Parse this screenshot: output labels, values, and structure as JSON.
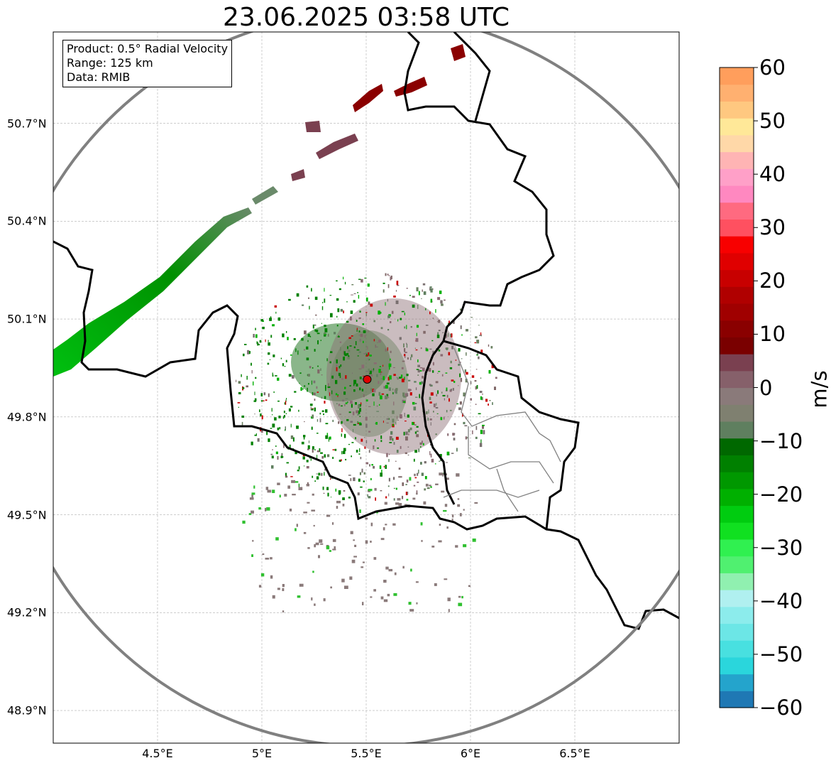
{
  "title": "23.06.2025 03:58 UTC",
  "info": {
    "product": "Product: 0.5° Radial Velocity",
    "range": "Range: 125 km",
    "data": "Data: RMIB"
  },
  "map": {
    "lon_range": [
      4.0,
      7.0
    ],
    "lat_range": [
      48.8,
      50.98
    ],
    "radar_site": {
      "lon": 5.505,
      "lat": 49.915
    },
    "range_ring_km": 125,
    "gridlines": true,
    "y_ticks": [
      {
        "value": 50.7,
        "label": "50.7°N"
      },
      {
        "value": 50.4,
        "label": "50.4°N"
      },
      {
        "value": 50.1,
        "label": "50.1°N"
      },
      {
        "value": 49.8,
        "label": "49.8°N"
      },
      {
        "value": 49.5,
        "label": "49.5°N"
      },
      {
        "value": 49.2,
        "label": "49.2°N"
      },
      {
        "value": 48.9,
        "label": "48.9°N"
      }
    ],
    "x_ticks": [
      {
        "value": 4.5,
        "label": "4.5°E"
      },
      {
        "value": 5.0,
        "label": "5°E"
      },
      {
        "value": 5.5,
        "label": "5.5°E"
      },
      {
        "value": 6.0,
        "label": "6°E"
      },
      {
        "value": 6.5,
        "label": "6.5°E"
      }
    ]
  },
  "colorbar": {
    "label": "m/s",
    "min": -60,
    "max": 60,
    "ticks": [
      {
        "value": 60,
        "label": "60"
      },
      {
        "value": 50,
        "label": "50"
      },
      {
        "value": 40,
        "label": "40"
      },
      {
        "value": 30,
        "label": "30"
      },
      {
        "value": 20,
        "label": "20"
      },
      {
        "value": 10,
        "label": "10"
      },
      {
        "value": 0,
        "label": "0"
      },
      {
        "value": -10,
        "label": "−10"
      },
      {
        "value": -20,
        "label": "−20"
      },
      {
        "value": -30,
        "label": "−30"
      },
      {
        "value": -40,
        "label": "−40"
      },
      {
        "value": -50,
        "label": "−50"
      },
      {
        "value": -60,
        "label": "−60"
      }
    ],
    "colors": [
      "#1f78b4",
      "#24a4cc",
      "#2ad6dc",
      "#48e0e0",
      "#6ce6e6",
      "#8cecec",
      "#b0f0f0",
      "#90f0b0",
      "#50f070",
      "#30f050",
      "#10e020",
      "#00cc10",
      "#00b000",
      "#009800",
      "#008000",
      "#006800",
      "#5f7f5f",
      "#7f8070",
      "#8a7a7a",
      "#86606a",
      "#7a4050",
      "#7a0000",
      "#8a0000",
      "#a00000",
      "#b00000",
      "#c80000",
      "#e00000",
      "#f80000",
      "#ff5060",
      "#ff6a80",
      "#ff88c0",
      "#ffa0c8",
      "#ffb4b4",
      "#ffd8a8",
      "#ffe898",
      "#ffc880",
      "#ffb070",
      "#ff9e5c"
    ]
  }
}
